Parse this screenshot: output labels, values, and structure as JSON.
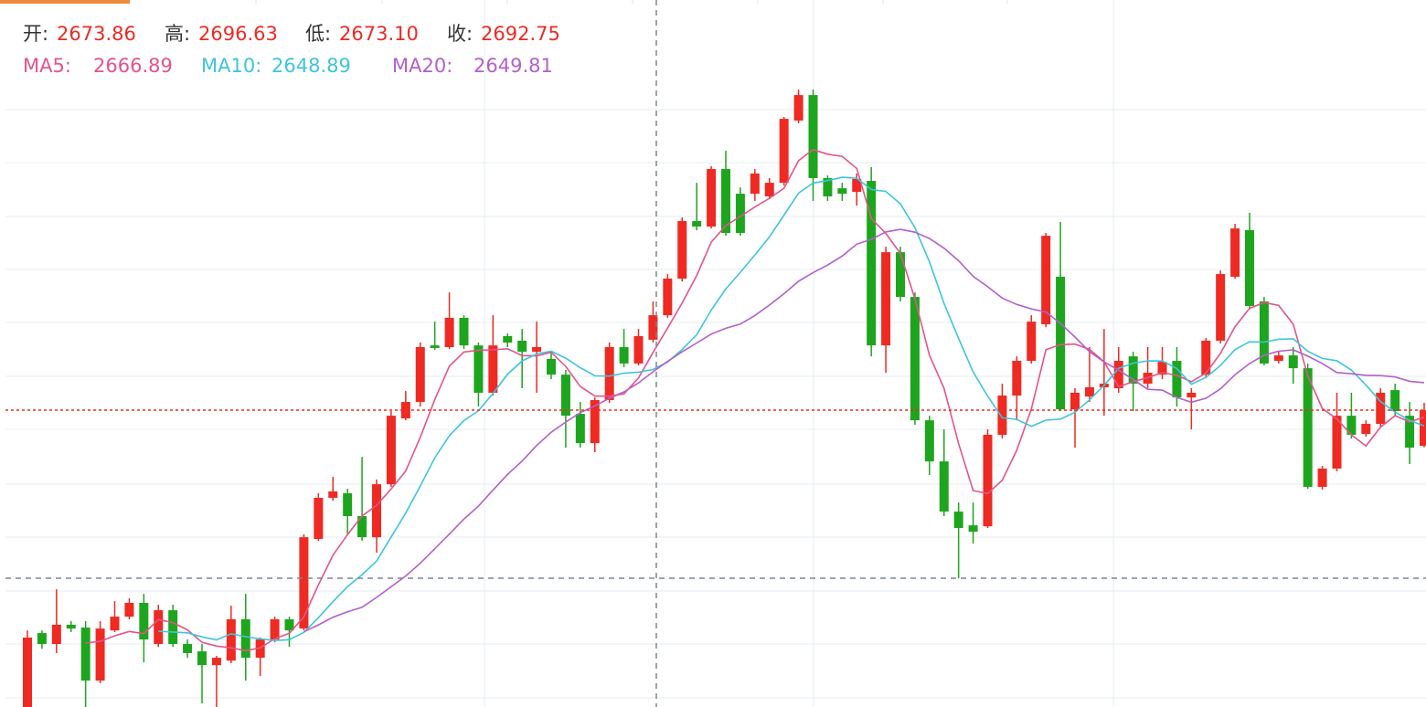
{
  "chart_data": {
    "type": "candlestick",
    "readout": [
      {
        "label": "开:",
        "value": 2673.86
      },
      {
        "label": "高:",
        "value": 2696.63
      },
      {
        "label": "低:",
        "value": 2673.1,
        "value_label": "2673.10"
      },
      {
        "label": "收:",
        "value": 2692.75
      }
    ],
    "ma": [
      {
        "label": "MA5:",
        "value": 2666.89,
        "color": "#e4538c"
      },
      {
        "label": "MA10:",
        "value": 2648.89,
        "color": "#3dc5dc"
      },
      {
        "label": "MA20:",
        "value": 2649.81,
        "color": "#b35fcc"
      }
    ],
    "up_color": "#ee2a22",
    "down_color": "#1ea51e",
    "ylim": [
      2535.4,
      2910.2
    ],
    "open": [
      2535.4,
      2574.6,
      2568.8,
      2579.0,
      2577.5,
      2549.4,
      2576.0,
      2583.3,
      2590.6,
      2568.8,
      2586.7,
      2568.8,
      2564.9,
      2557.6,
      2560.0,
      2581.9,
      2561.5,
      2571.2,
      2581.9,
      2577.0,
      2624.5,
      2646.3,
      2648.7,
      2636.6,
      2625.4,
      2653.5,
      2688.4,
      2697.1,
      2727.1,
      2726.2,
      2741.7,
      2727.1,
      2702.0,
      2732.0,
      2729.6,
      2723.7,
      2719.9,
      2711.6,
      2690.8,
      2675.3,
      2698.1,
      2726.2,
      2717.5,
      2730.1,
      2743.1,
      2762.5,
      2793.0,
      2790.1,
      2820.6,
      2807.5,
      2807.5,
      2806.1,
      2813.3,
      2846.3,
      2859.8,
      2815.8,
      2810.4,
      2808.5,
      2814.3,
      2727.1,
      2776.5,
      2752.8,
      2687.4,
      2665.6,
      2639.0,
      2631.7,
      2631.2,
      2679.7,
      2700.5,
      2718.9,
      2738.3,
      2763.5,
      2693.2,
      2700.0,
      2704.9,
      2704.4,
      2721.3,
      2706.8,
      2711.6,
      2718.9,
      2699.5,
      2711.6,
      2729.6,
      2763.5,
      2788.2,
      2750.4,
      2718.9,
      2721.8,
      2715.0,
      2652.1,
      2661.8,
      2689.8,
      2680.2,
      2685.5,
      2703.4,
      2689.8,
      2673.86
    ],
    "high": [
      2576.0,
      2576.0,
      2597.8,
      2580.9,
      2580.9,
      2580.9,
      2591.5,
      2593.0,
      2595.4,
      2589.6,
      2589.6,
      2571.2,
      2568.8,
      2562.5,
      2589.1,
      2595.4,
      2572.2,
      2583.3,
      2583.3,
      2626.9,
      2648.7,
      2657.4,
      2651.1,
      2668.0,
      2656.0,
      2692.3,
      2702.9,
      2728.6,
      2739.7,
      2755.2,
      2743.1,
      2728.6,
      2743.1,
      2733.4,
      2735.8,
      2739.7,
      2723.7,
      2714.1,
      2697.1,
      2699.5,
      2728.6,
      2735.8,
      2735.8,
      2750.4,
      2764.9,
      2794.9,
      2813.3,
      2822.1,
      2830.3,
      2810.9,
      2820.6,
      2815.8,
      2848.2,
      2862.7,
      2862.7,
      2817.2,
      2813.3,
      2818.2,
      2821.6,
      2779.4,
      2779.4,
      2755.2,
      2689.8,
      2682.6,
      2643.8,
      2643.8,
      2682.6,
      2706.8,
      2721.3,
      2743.1,
      2786.7,
      2792.5,
      2704.4,
      2726.2,
      2735.8,
      2726.2,
      2723.7,
      2726.2,
      2726.2,
      2726.2,
      2704.4,
      2731.0,
      2766.8,
      2791.5,
      2797.4,
      2752.8,
      2723.7,
      2726.2,
      2717.5,
      2663.2,
      2702.0,
      2702.0,
      2687.4,
      2704.4,
      2706.8,
      2697.1,
      2696.63
    ],
    "low": [
      2535.4,
      2566.3,
      2564.0,
      2575.1,
      2535.4,
      2548.0,
      2575.1,
      2581.9,
      2559.1,
      2567.3,
      2567.3,
      2561.5,
      2537.3,
      2535.4,
      2558.6,
      2549.4,
      2551.8,
      2569.7,
      2567.3,
      2576.0,
      2623.5,
      2644.8,
      2626.9,
      2623.5,
      2617.2,
      2652.1,
      2687.4,
      2694.7,
      2724.7,
      2725.2,
      2725.2,
      2694.7,
      2700.5,
      2726.2,
      2704.4,
      2702.0,
      2709.2,
      2672.9,
      2672.9,
      2670.5,
      2696.6,
      2715.5,
      2716.5,
      2728.6,
      2741.7,
      2761.0,
      2788.1,
      2789.1,
      2785.2,
      2785.2,
      2803.7,
      2804.6,
      2811.9,
      2844.8,
      2803.7,
      2803.7,
      2803.7,
      2801.2,
      2721.3,
      2712.6,
      2750.4,
      2685.0,
      2658.4,
      2636.6,
      2603.6,
      2622.0,
      2630.3,
      2677.7,
      2687.4,
      2717.5,
      2736.8,
      2692.3,
      2672.9,
      2697.1,
      2689.8,
      2702.0,
      2692.3,
      2704.4,
      2709.2,
      2694.7,
      2682.6,
      2710.2,
      2728.1,
      2762.5,
      2746.5,
      2716.5,
      2717.5,
      2706.8,
      2651.1,
      2650.6,
      2660.3,
      2677.7,
      2678.7,
      2684.0,
      2689.8,
      2664.2,
      2673.1
    ],
    "close": [
      2572.2,
      2568.8,
      2579.0,
      2577.0,
      2549.4,
      2577.0,
      2583.3,
      2590.6,
      2571.2,
      2586.7,
      2568.8,
      2564.0,
      2557.6,
      2561.5,
      2581.9,
      2561.5,
      2571.2,
      2581.9,
      2576.0,
      2625.4,
      2646.3,
      2649.7,
      2636.6,
      2625.4,
      2653.5,
      2689.8,
      2697.1,
      2726.2,
      2725.7,
      2741.7,
      2727.1,
      2702.0,
      2727.1,
      2728.6,
      2723.7,
      2726.2,
      2711.6,
      2689.8,
      2675.3,
      2698.1,
      2726.2,
      2717.5,
      2732.0,
      2743.1,
      2762.5,
      2793.0,
      2790.1,
      2820.6,
      2786.7,
      2786.7,
      2818.2,
      2813.3,
      2847.2,
      2859.8,
      2815.8,
      2806.1,
      2807.5,
      2815.3,
      2727.1,
      2776.5,
      2752.8,
      2687.4,
      2665.6,
      2639.0,
      2630.3,
      2628.3,
      2679.7,
      2700.5,
      2718.9,
      2739.7,
      2785.2,
      2693.2,
      2702.0,
      2704.9,
      2706.8,
      2718.9,
      2706.8,
      2712.6,
      2718.4,
      2699.5,
      2702.0,
      2729.6,
      2764.9,
      2789.1,
      2748.0,
      2717.5,
      2721.8,
      2715.0,
      2652.1,
      2661.8,
      2689.8,
      2679.7,
      2685.5,
      2702.0,
      2692.3,
      2672.9,
      2692.75
    ]
  }
}
